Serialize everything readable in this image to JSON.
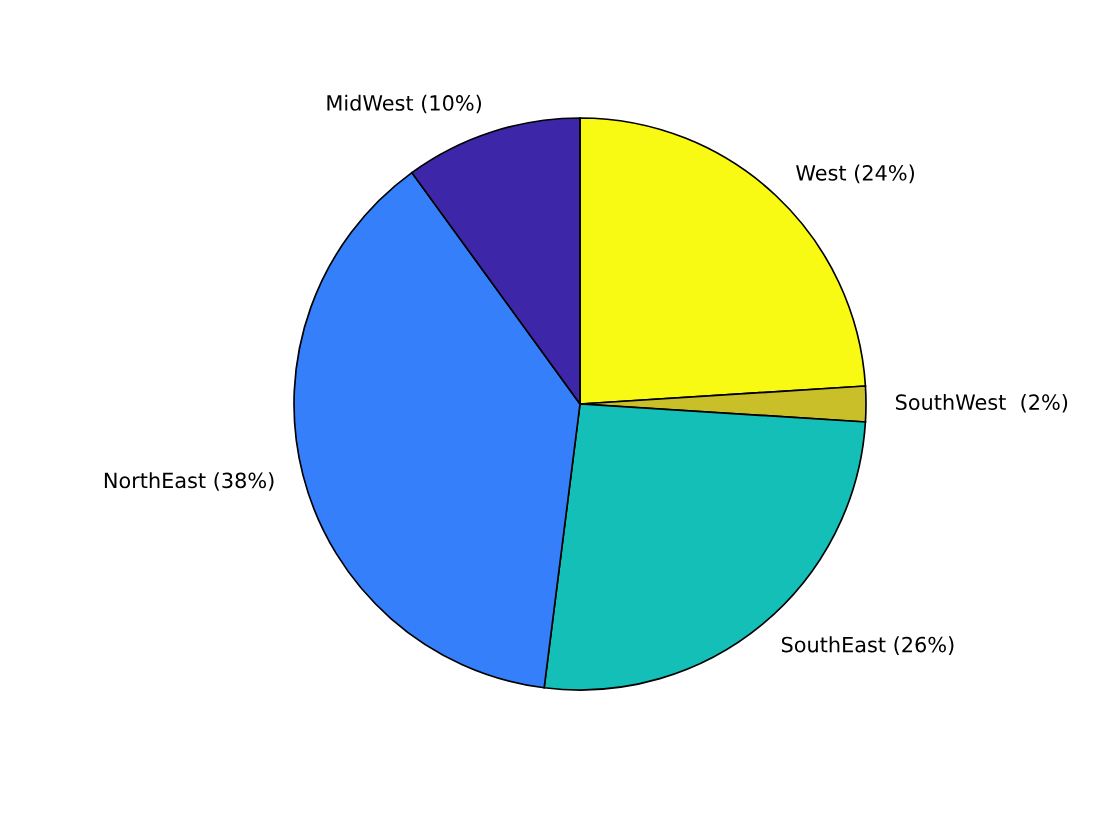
{
  "chart_data": {
    "type": "pie",
    "categories": [
      "West (24%)",
      "SouthWest  (2%)",
      "SouthEast (26%)",
      "NorthEast (38%)",
      "MidWest (10%)"
    ],
    "values": [
      24,
      2,
      26,
      38,
      10
    ],
    "colors": [
      "#f9fa14",
      "#c9bf28",
      "#14bfb8",
      "#3580fa",
      "#3e26a8"
    ]
  }
}
